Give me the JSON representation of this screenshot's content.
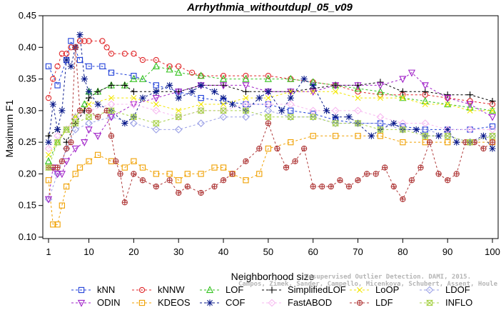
{
  "chart_data": {
    "type": "line",
    "title": "Arrhythmia_withoutdupl_05_v09",
    "xlabel": "Neighborhood size",
    "ylabel": "Maximum F1",
    "xlim": [
      1,
      100
    ],
    "ylim": [
      0.1,
      0.45
    ],
    "xticks": [
      1,
      10,
      20,
      30,
      40,
      50,
      60,
      70,
      80,
      90,
      100
    ],
    "yticks": [
      0.1,
      0.15,
      0.2,
      0.25,
      0.3,
      0.35,
      0.4,
      0.45
    ],
    "grid": false,
    "legend_position": "bottom",
    "credit": [
      "Campos, Zimek, Sander, Campello, Micenkova, Schubert, Assent, Houle",
      "Unsupervised Outlier Detection. DAMI, 2015."
    ],
    "series": [
      {
        "name": "kNN",
        "color": "#1f3fd8",
        "marker": "square",
        "x": [
          1,
          3,
          5,
          6,
          8,
          10,
          13,
          15,
          20,
          25,
          30,
          35,
          40,
          45,
          50,
          55,
          60,
          65,
          70,
          75,
          80,
          85,
          90,
          95,
          100
        ],
        "y": [
          0.37,
          0.34,
          0.38,
          0.41,
          0.38,
          0.37,
          0.37,
          0.36,
          0.355,
          0.34,
          0.33,
          0.32,
          0.315,
          0.31,
          0.31,
          0.3,
          0.295,
          0.285,
          0.28,
          0.28,
          0.275,
          0.27,
          0.27,
          0.27,
          0.275
        ]
      },
      {
        "name": "kNNW",
        "color": "#e0282b",
        "marker": "circle",
        "x": [
          1,
          2,
          3,
          4,
          5,
          6,
          7,
          8,
          9,
          10,
          13,
          14,
          15,
          18,
          20,
          22,
          25,
          28,
          30,
          33,
          35,
          40,
          45,
          50,
          55,
          60,
          65,
          70,
          75,
          80,
          85,
          90,
          95,
          100
        ],
        "y": [
          0.32,
          0.35,
          0.37,
          0.39,
          0.39,
          0.4,
          0.4,
          0.41,
          0.41,
          0.41,
          0.41,
          0.4,
          0.39,
          0.39,
          0.39,
          0.38,
          0.38,
          0.37,
          0.37,
          0.36,
          0.355,
          0.355,
          0.355,
          0.355,
          0.35,
          0.345,
          0.34,
          0.33,
          0.325,
          0.325,
          0.325,
          0.32,
          0.315,
          0.31
        ]
      },
      {
        "name": "LOF",
        "color": "#34c21f",
        "marker": "triangle-up",
        "x": [
          1,
          3,
          5,
          7,
          9,
          10,
          12,
          15,
          18,
          20,
          22,
          25,
          28,
          30,
          35,
          40,
          45,
          50,
          55,
          60,
          65,
          70,
          75,
          80,
          85,
          90,
          95,
          100
        ],
        "y": [
          0.22,
          0.25,
          0.27,
          0.29,
          0.31,
          0.33,
          0.33,
          0.34,
          0.34,
          0.35,
          0.35,
          0.37,
          0.365,
          0.36,
          0.355,
          0.35,
          0.35,
          0.35,
          0.35,
          0.345,
          0.34,
          0.335,
          0.33,
          0.32,
          0.315,
          0.31,
          0.305,
          0.3
        ]
      },
      {
        "name": "SimplifiedLOF",
        "color": "#000000",
        "marker": "plus",
        "x": [
          1,
          3,
          5,
          7,
          9,
          10,
          12,
          15,
          18,
          20,
          25,
          30,
          35,
          40,
          45,
          50,
          55,
          60,
          65,
          70,
          75,
          80,
          85,
          90,
          95,
          100
        ],
        "y": [
          0.26,
          0.27,
          0.25,
          0.28,
          0.3,
          0.32,
          0.33,
          0.34,
          0.34,
          0.33,
          0.33,
          0.33,
          0.34,
          0.34,
          0.33,
          0.33,
          0.33,
          0.335,
          0.34,
          0.34,
          0.345,
          0.33,
          0.33,
          0.325,
          0.325,
          0.315
        ]
      },
      {
        "name": "LoOP",
        "color": "#f2e600",
        "marker": "cross",
        "x": [
          1,
          3,
          5,
          7,
          10,
          15,
          20,
          25,
          30,
          35,
          40,
          45,
          50,
          55,
          60,
          65,
          70,
          75,
          80,
          85,
          90,
          95,
          100
        ],
        "y": [
          0.23,
          0.25,
          0.27,
          0.29,
          0.31,
          0.32,
          0.32,
          0.31,
          0.3,
          0.31,
          0.31,
          0.32,
          0.32,
          0.33,
          0.33,
          0.33,
          0.32,
          0.32,
          0.32,
          0.31,
          0.31,
          0.3,
          0.3
        ]
      },
      {
        "name": "LDOF",
        "color": "#9aa0e6",
        "marker": "diamond",
        "x": [
          1,
          3,
          5,
          7,
          10,
          15,
          20,
          25,
          30,
          35,
          40,
          45,
          50,
          55,
          60,
          65,
          70,
          75,
          80,
          85,
          90,
          95,
          100
        ],
        "y": [
          0.16,
          0.2,
          0.24,
          0.27,
          0.28,
          0.29,
          0.28,
          0.27,
          0.27,
          0.28,
          0.29,
          0.29,
          0.3,
          0.29,
          0.29,
          0.28,
          0.28,
          0.28,
          0.27,
          0.27,
          0.26,
          0.25,
          0.26
        ]
      },
      {
        "name": "ODIN",
        "color": "#a020c8",
        "marker": "triangle-down",
        "x": [
          1,
          2,
          3,
          4,
          5,
          7,
          9,
          10,
          12,
          15,
          20,
          25,
          30,
          35,
          40,
          45,
          50,
          55,
          60,
          65,
          70,
          75,
          80,
          82,
          85,
          90,
          95,
          100
        ],
        "y": [
          0.16,
          0.21,
          0.2,
          0.2,
          0.22,
          0.24,
          0.25,
          0.27,
          0.26,
          0.29,
          0.31,
          0.32,
          0.33,
          0.34,
          0.34,
          0.34,
          0.33,
          0.33,
          0.33,
          0.34,
          0.34,
          0.34,
          0.35,
          0.36,
          0.34,
          0.32,
          0.31,
          0.29
        ]
      },
      {
        "name": "KDEOS",
        "color": "#f0a000",
        "marker": "square",
        "x": [
          1,
          2,
          3,
          4,
          5,
          7,
          8,
          10,
          12,
          15,
          18,
          20,
          22,
          25,
          28,
          30,
          32,
          35,
          38,
          40,
          42,
          45,
          48,
          50,
          55,
          60,
          65,
          70,
          75,
          80,
          85,
          90,
          95,
          100
        ],
        "y": [
          0.19,
          0.12,
          0.12,
          0.15,
          0.18,
          0.2,
          0.21,
          0.22,
          0.23,
          0.22,
          0.21,
          0.22,
          0.21,
          0.2,
          0.2,
          0.19,
          0.2,
          0.2,
          0.21,
          0.21,
          0.2,
          0.19,
          0.2,
          0.24,
          0.25,
          0.26,
          0.26,
          0.26,
          0.26,
          0.25,
          0.25,
          0.25,
          0.25,
          0.25
        ]
      },
      {
        "name": "COF",
        "color": "#0a1a8a",
        "marker": "asterisk",
        "x": [
          1,
          2,
          3,
          4,
          5,
          6,
          7,
          8,
          9,
          10,
          12,
          15,
          18,
          20,
          22,
          25,
          28,
          30,
          33,
          35,
          38,
          40,
          42,
          45,
          48,
          50,
          53,
          55,
          58,
          60,
          63,
          65,
          68,
          70,
          73,
          75,
          78,
          80,
          83,
          85,
          88,
          90,
          92,
          95,
          98,
          100
        ],
        "y": [
          0.25,
          0.31,
          0.27,
          0.3,
          0.38,
          0.37,
          0.4,
          0.42,
          0.35,
          0.33,
          0.31,
          0.3,
          0.28,
          0.29,
          0.32,
          0.33,
          0.34,
          0.32,
          0.33,
          0.34,
          0.33,
          0.32,
          0.31,
          0.3,
          0.32,
          0.33,
          0.3,
          0.32,
          0.35,
          0.34,
          0.3,
          0.29,
          0.29,
          0.28,
          0.26,
          0.27,
          0.28,
          0.27,
          0.27,
          0.26,
          0.26,
          0.27,
          0.25,
          0.25,
          0.26,
          0.24
        ]
      },
      {
        "name": "FastABOD",
        "color": "#f7b8f0",
        "marker": "diamond",
        "x": [
          1,
          3,
          5,
          7,
          10,
          15,
          20,
          25,
          30,
          35,
          40,
          45,
          50,
          55,
          60,
          65,
          70,
          75,
          80,
          85,
          90,
          95,
          100
        ],
        "y": [
          0.24,
          0.26,
          0.27,
          0.29,
          0.3,
          0.31,
          0.31,
          0.3,
          0.29,
          0.3,
          0.3,
          0.31,
          0.31,
          0.31,
          0.3,
          0.3,
          0.3,
          0.29,
          0.28,
          0.28,
          0.27,
          0.27,
          0.27
        ]
      },
      {
        "name": "LDF",
        "color": "#b03a3a",
        "marker": "circle-plus",
        "x": [
          1,
          2,
          3,
          4,
          5,
          6,
          7,
          8,
          10,
          12,
          14,
          15,
          16,
          17,
          18,
          20,
          22,
          25,
          28,
          30,
          32,
          35,
          38,
          40,
          42,
          45,
          48,
          50,
          52,
          54,
          56,
          58,
          60,
          62,
          64,
          66,
          68,
          70,
          72,
          74,
          76,
          78,
          80,
          82,
          84,
          86,
          88,
          90,
          92,
          94,
          96,
          98,
          100
        ],
        "y": [
          0.21,
          0.21,
          0.21,
          0.22,
          0.24,
          0.25,
          0.4,
          0.3,
          0.3,
          0.29,
          0.3,
          0.26,
          0.22,
          0.2,
          0.155,
          0.2,
          0.19,
          0.18,
          0.19,
          0.17,
          0.18,
          0.17,
          0.18,
          0.19,
          0.2,
          0.22,
          0.24,
          0.28,
          0.24,
          0.21,
          0.22,
          0.24,
          0.18,
          0.18,
          0.18,
          0.19,
          0.18,
          0.19,
          0.2,
          0.2,
          0.21,
          0.18,
          0.16,
          0.19,
          0.21,
          0.25,
          0.2,
          0.19,
          0.2,
          0.25,
          0.25,
          0.24,
          0.25
        ]
      },
      {
        "name": "INFLO",
        "color": "#a8d24a",
        "marker": "hourglass",
        "x": [
          1,
          3,
          5,
          7,
          10,
          15,
          20,
          25,
          30,
          35,
          40,
          45,
          50,
          55,
          60,
          65,
          70,
          75,
          80,
          85,
          90,
          95,
          100
        ],
        "y": [
          0.21,
          0.25,
          0.27,
          0.28,
          0.29,
          0.3,
          0.29,
          0.28,
          0.29,
          0.3,
          0.3,
          0.3,
          0.29,
          0.29,
          0.29,
          0.28,
          0.28,
          0.27,
          0.27,
          0.26,
          0.26,
          0.25,
          0.26
        ]
      }
    ]
  }
}
